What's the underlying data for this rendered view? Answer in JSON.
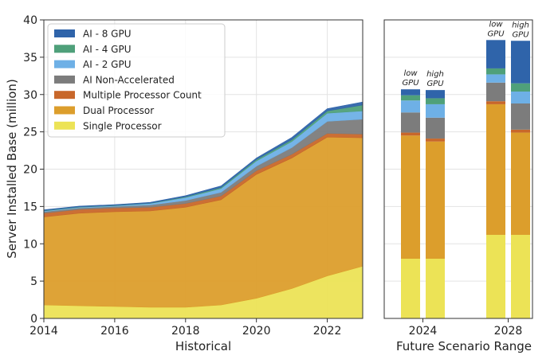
{
  "chart_data": [
    {
      "type": "area",
      "stacked": true,
      "xlabel": "Historical",
      "ylabel": "Server Installed Base (million)",
      "xlim": [
        2014,
        2023
      ],
      "ylim": [
        0,
        40
      ],
      "xticks": [
        2014,
        2016,
        2018,
        2020,
        2022
      ],
      "yticks": [
        0,
        5,
        10,
        15,
        20,
        25,
        30,
        35,
        40
      ],
      "grid": true,
      "legend_position": "top-left",
      "x": [
        2014,
        2015,
        2016,
        2017,
        2018,
        2019,
        2020,
        2021,
        2022,
        2023
      ],
      "series": [
        {
          "name": "Single Processor",
          "color": "#ece356",
          "values": [
            1.8,
            1.7,
            1.6,
            1.5,
            1.5,
            1.8,
            2.7,
            4.0,
            5.7,
            7.0
          ]
        },
        {
          "name": "Dual Processor",
          "color": "#dc9e2c",
          "values": [
            11.8,
            12.4,
            12.7,
            12.9,
            13.4,
            14.1,
            16.6,
            17.5,
            18.6,
            17.2
          ]
        },
        {
          "name": "Multiple Processor Count",
          "color": "#c8672a",
          "values": [
            0.5,
            0.5,
            0.5,
            0.5,
            0.5,
            0.5,
            0.5,
            0.5,
            0.5,
            0.5
          ]
        },
        {
          "name": "AI Non-Accelerated",
          "color": "#7c7c7c",
          "values": [
            0.2,
            0.2,
            0.2,
            0.3,
            0.4,
            0.5,
            0.6,
            0.9,
            1.6,
            2.0
          ]
        },
        {
          "name": "AI - 2 GPU",
          "color": "#6eb0e6",
          "values": [
            0.1,
            0.1,
            0.1,
            0.2,
            0.4,
            0.5,
            0.7,
            0.8,
            1.1,
            1.1
          ]
        },
        {
          "name": "AI - 4 GPU",
          "color": "#4fa07a",
          "values": [
            0.05,
            0.05,
            0.05,
            0.05,
            0.1,
            0.15,
            0.2,
            0.25,
            0.3,
            0.8
          ]
        },
        {
          "name": "AI - 8 GPU",
          "color": "#2f64aa",
          "values": [
            0.1,
            0.1,
            0.1,
            0.1,
            0.15,
            0.2,
            0.2,
            0.3,
            0.3,
            0.4
          ]
        }
      ]
    },
    {
      "type": "bar",
      "stacked": true,
      "xlabel": "Future Scenario Range",
      "ylim": [
        0,
        40
      ],
      "xticks": [
        2024,
        2028
      ],
      "grid": true,
      "bars": [
        {
          "year": 2024,
          "label": [
            "low",
            "GPU"
          ],
          "values": [
            8.0,
            16.5,
            0.4,
            2.7,
            1.6,
            0.7,
            0.8
          ]
        },
        {
          "year": 2024,
          "label": [
            "high",
            "GPU"
          ],
          "values": [
            8.0,
            15.7,
            0.4,
            2.8,
            1.8,
            0.8,
            1.1
          ]
        },
        {
          "year": 2028,
          "label": [
            "low",
            "GPU"
          ],
          "values": [
            11.2,
            17.5,
            0.4,
            2.5,
            1.1,
            0.8,
            3.8
          ]
        },
        {
          "year": 2028,
          "label": [
            "high",
            "GPU"
          ],
          "values": [
            11.2,
            13.7,
            0.4,
            3.5,
            1.6,
            1.1,
            5.7
          ]
        }
      ]
    }
  ],
  "legend": [
    {
      "label": "AI - 8 GPU",
      "color": "#2f64aa"
    },
    {
      "label": "AI - 4 GPU",
      "color": "#4fa07a"
    },
    {
      "label": "AI - 2 GPU",
      "color": "#6eb0e6"
    },
    {
      "label": "AI Non-Accelerated",
      "color": "#7c7c7c"
    },
    {
      "label": "Multiple Processor Count",
      "color": "#c8672a"
    },
    {
      "label": "Dual Processor",
      "color": "#dc9e2c"
    },
    {
      "label": "Single Processor",
      "color": "#ece356"
    }
  ]
}
